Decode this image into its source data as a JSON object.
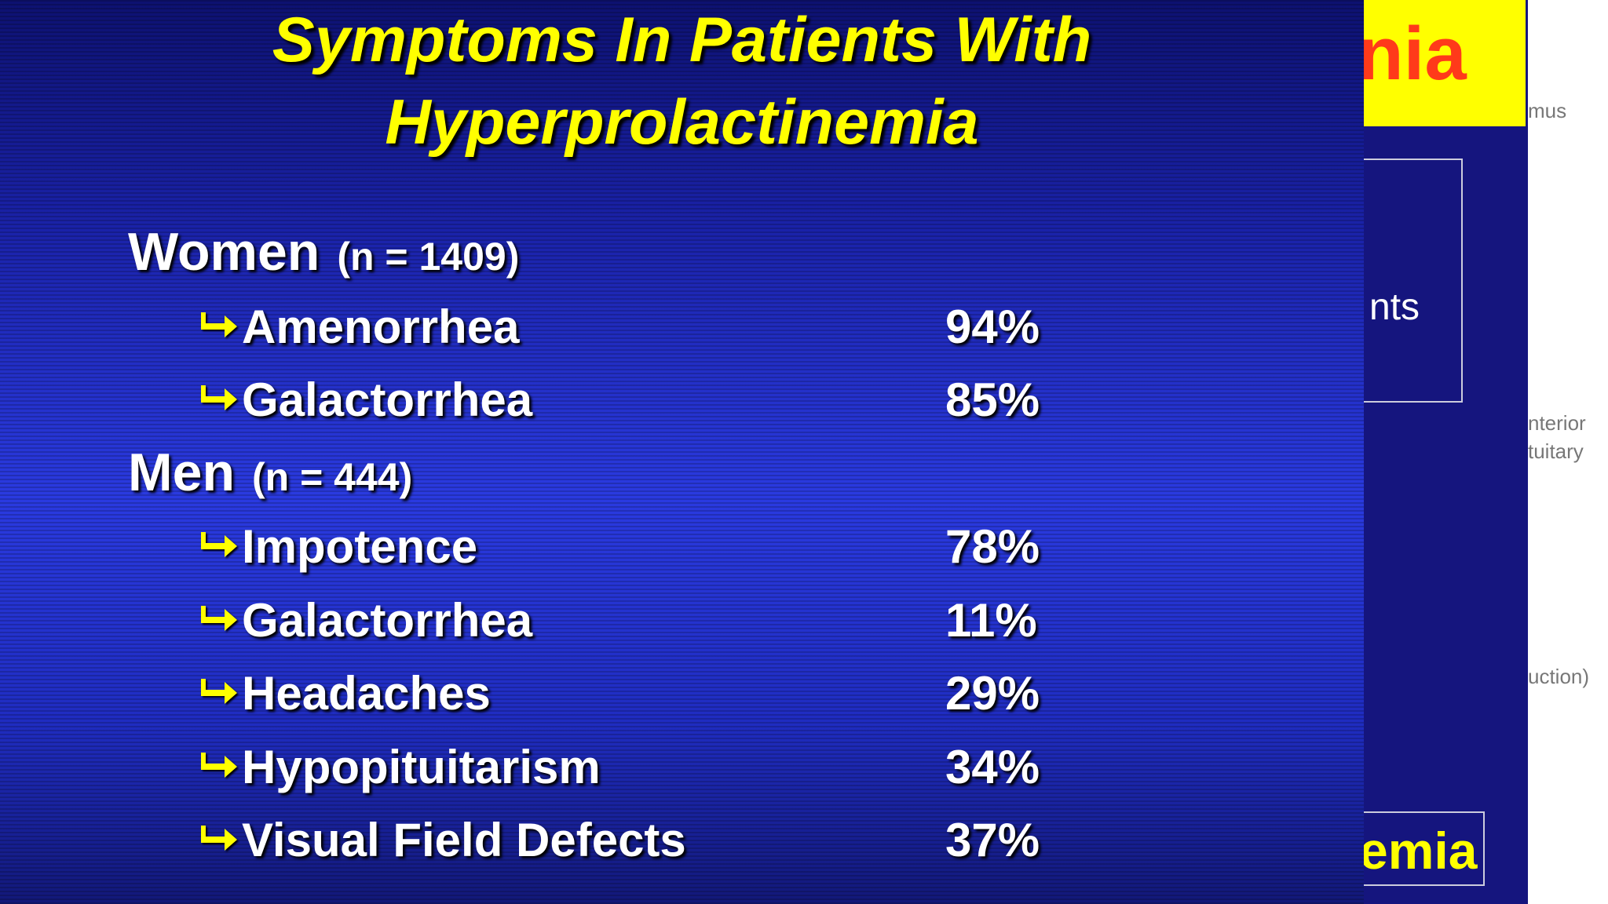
{
  "title": {
    "line1": "Symptoms In Patients With",
    "line2": "Hyperprolactinemia"
  },
  "groups": [
    {
      "label": "Women",
      "n": "(n = 1409)",
      "items": [
        {
          "name": "Amenorrhea",
          "value": "94%"
        },
        {
          "name": "Galactorrhea",
          "value": "85%"
        }
      ]
    },
    {
      "label": "Men",
      "n": "(n = 444)",
      "items": [
        {
          "name": "Impotence",
          "value": "78%"
        },
        {
          "name": "Galactorrhea",
          "value": "11%"
        },
        {
          "name": "Headaches",
          "value": "29%"
        },
        {
          "name": "Hypopituitarism",
          "value": "34%"
        },
        {
          "name": "Visual Field Defects",
          "value": "37%"
        }
      ]
    }
  ],
  "background_slide": {
    "title_fragment": "nia",
    "box_text": "nts",
    "footer_fragment": "emia"
  },
  "side_notes": [
    "mus",
    "nterior",
    "tuitary",
    "uction)"
  ]
}
